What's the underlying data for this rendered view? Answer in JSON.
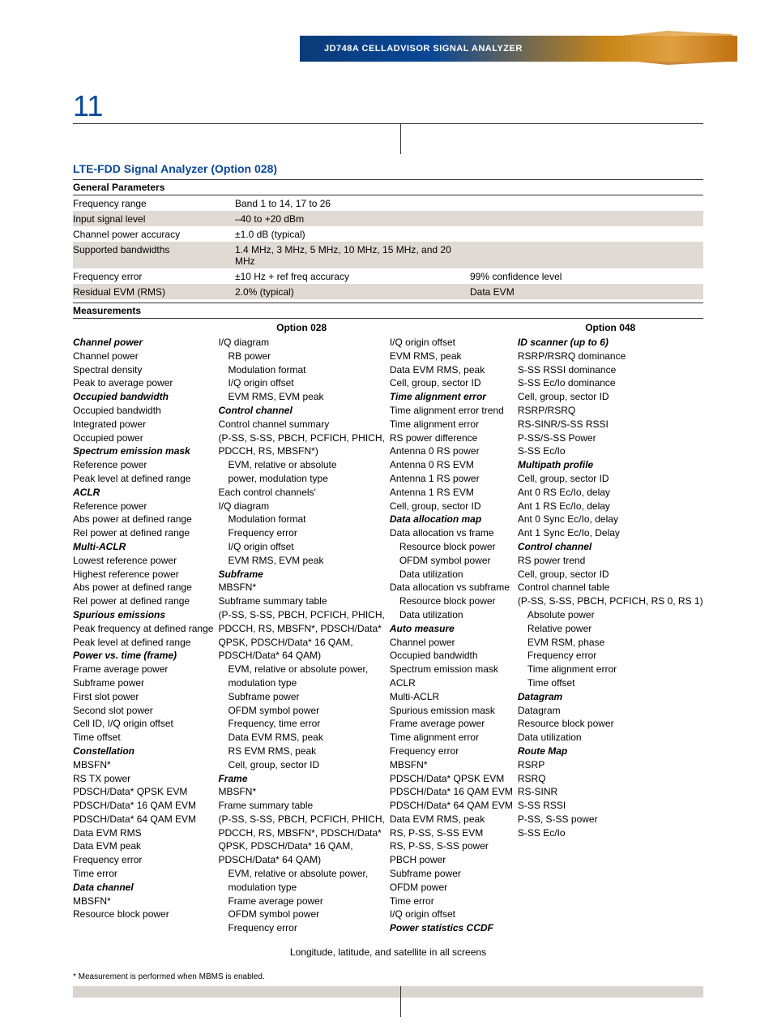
{
  "header": {
    "product_title": "JD748A CELLADVISOR SIGNAL ANALYZER",
    "page_number": "11"
  },
  "colors": {
    "heading_blue": "#0a4796",
    "shaded_row": "#e0dad4",
    "footer_grey": "#d9d4cd",
    "body_text": "#000000"
  },
  "section_title": "LTE-FDD Signal Analyzer (Option 028)",
  "general_parameters": {
    "heading": "General Parameters",
    "rows": [
      {
        "label": "Frequency range",
        "value": "Band 1 to 14, 17 to 26",
        "right": "",
        "shaded": false
      },
      {
        "label": "Input signal level",
        "value": "–40 to +20 dBm",
        "right": "",
        "shaded": true
      },
      {
        "label": "Channel power accuracy",
        "value": "±1.0 dB (typical)",
        "right": "",
        "shaded": false
      },
      {
        "label": "Supported bandwidths",
        "value": "1.4 MHz, 3 MHz, 5 MHz, 10 MHz, 15 MHz, and 20 MHz",
        "right": "",
        "shaded": true
      },
      {
        "label": "Frequency error",
        "value": "±10 Hz + ref freq accuracy",
        "right": "99% confidence level",
        "shaded": false
      },
      {
        "label": "Residual EVM (RMS)",
        "value": "2.0% (typical)",
        "right": "Data EVM",
        "shaded": true
      }
    ]
  },
  "measurements": {
    "heading": "Measurements",
    "option028_heading": "Option 028",
    "option048_heading": "Option 048",
    "col1": [
      {
        "t": "Channel power",
        "c": "bi"
      },
      {
        "t": "Channel power"
      },
      {
        "t": "Spectral density"
      },
      {
        "t": "Peak to average power"
      },
      {
        "t": "Occupied bandwidth",
        "c": "bi"
      },
      {
        "t": "Occupied bandwidth"
      },
      {
        "t": "Integrated power"
      },
      {
        "t": "Occupied power"
      },
      {
        "t": "Spectrum emission mask",
        "c": "bi"
      },
      {
        "t": "Reference power"
      },
      {
        "t": "Peak level at defined range"
      },
      {
        "t": "ACLR",
        "c": "bi"
      },
      {
        "t": "Reference power"
      },
      {
        "t": "Abs power at defined range"
      },
      {
        "t": "Rel power at defined range"
      },
      {
        "t": "Multi-ACLR",
        "c": "bi"
      },
      {
        "t": "Lowest reference power"
      },
      {
        "t": "Highest reference power"
      },
      {
        "t": "Abs power at defined range"
      },
      {
        "t": "Rel power at defined range"
      },
      {
        "t": "Spurious emissions",
        "c": "bi"
      },
      {
        "t": "Peak frequency at defined range"
      },
      {
        "t": "Peak level at defined range"
      },
      {
        "t": "Power vs. time (frame)",
        "c": "bi"
      },
      {
        "t": "Frame average power"
      },
      {
        "t": "Subframe power"
      },
      {
        "t": "First slot power"
      },
      {
        "t": "Second slot power"
      },
      {
        "t": "Cell ID, I/Q origin offset"
      },
      {
        "t": "Time offset"
      },
      {
        "t": "Constellation",
        "c": "bi"
      },
      {
        "t": "MBSFN*"
      },
      {
        "t": "RS TX power"
      },
      {
        "t": "PDSCH/Data* QPSK EVM"
      },
      {
        "t": "PDSCH/Data* 16 QAM EVM"
      },
      {
        "t": "PDSCH/Data* 64 QAM EVM"
      },
      {
        "t": "Data EVM RMS"
      },
      {
        "t": "Data EVM peak"
      },
      {
        "t": "Frequency error"
      },
      {
        "t": "Time error"
      },
      {
        "t": "Data channel",
        "c": "bi"
      },
      {
        "t": "MBSFN*"
      },
      {
        "t": "Resource block power"
      }
    ],
    "col2": [
      {
        "t": "I/Q diagram"
      },
      {
        "t": "RB power",
        "c": "indent"
      },
      {
        "t": "Modulation format",
        "c": "indent"
      },
      {
        "t": "I/Q origin offset",
        "c": "indent"
      },
      {
        "t": "EVM RMS, EVM peak",
        "c": "indent"
      },
      {
        "t": "Control channel",
        "c": "bi"
      },
      {
        "t": "Control channel summary"
      },
      {
        "t": "(P-SS, S-SS, PBCH, PCFICH, PHICH,"
      },
      {
        "t": "PDCCH, RS, MBSFN*)"
      },
      {
        "t": "EVM, relative or absolute",
        "c": "indent"
      },
      {
        "t": "power, modulation type",
        "c": "indent"
      },
      {
        "t": "Each control channels'"
      },
      {
        "t": "I/Q diagram"
      },
      {
        "t": "Modulation format",
        "c": "indent"
      },
      {
        "t": "Frequency error",
        "c": "indent"
      },
      {
        "t": "I/Q origin offset",
        "c": "indent"
      },
      {
        "t": "EVM RMS, EVM peak",
        "c": "indent"
      },
      {
        "t": "Subframe",
        "c": "bi"
      },
      {
        "t": "MBSFN*"
      },
      {
        "t": "Subframe summary table"
      },
      {
        "t": "(P-SS, S-SS, PBCH, PCFICH, PHICH,"
      },
      {
        "t": "PDCCH, RS, MBSFN*, PDSCH/Data*"
      },
      {
        "t": "QPSK,  PDSCH/Data* 16 QAM,"
      },
      {
        "t": "PDSCH/Data* 64 QAM)"
      },
      {
        "t": "EVM, relative or absolute power,",
        "c": "indent"
      },
      {
        "t": "modulation type",
        "c": "indent"
      },
      {
        "t": "Subframe power",
        "c": "indent"
      },
      {
        "t": "OFDM symbol power",
        "c": "indent"
      },
      {
        "t": "Frequency, time error",
        "c": "indent"
      },
      {
        "t": "Data EVM RMS, peak",
        "c": "indent"
      },
      {
        "t": "RS EVM RMS, peak",
        "c": "indent"
      },
      {
        "t": "Cell, group, sector ID",
        "c": "indent"
      },
      {
        "t": "Frame",
        "c": "bi"
      },
      {
        "t": "MBSFN*"
      },
      {
        "t": "Frame summary table"
      },
      {
        "t": "(P-SS, S-SS, PBCH, PCFICH, PHICH,"
      },
      {
        "t": "PDCCH, RS, MBSFN*, PDSCH/Data*"
      },
      {
        "t": "QPSK,  PDSCH/Data* 16 QAM,"
      },
      {
        "t": "PDSCH/Data*  64 QAM)"
      },
      {
        "t": "EVM, relative or absolute power,",
        "c": "indent"
      },
      {
        "t": "modulation type",
        "c": "indent"
      },
      {
        "t": "Frame average power",
        "c": "indent"
      },
      {
        "t": "OFDM symbol power",
        "c": "indent"
      },
      {
        "t": "Frequency error",
        "c": "indent"
      }
    ],
    "col3": [
      {
        "t": "I/Q origin offset"
      },
      {
        "t": "EVM RMS, peak"
      },
      {
        "t": "Data EVM RMS, peak"
      },
      {
        "t": "Cell, group, sector ID"
      },
      {
        "t": "Time alignment error",
        "c": "bi"
      },
      {
        "t": "Time alignment error trend"
      },
      {
        "t": "Time alignment error"
      },
      {
        "t": "RS power difference"
      },
      {
        "t": "Antenna 0 RS power"
      },
      {
        "t": "Antenna 0 RS EVM"
      },
      {
        "t": "Antenna 1 RS power"
      },
      {
        "t": "Antenna 1 RS EVM"
      },
      {
        "t": "Cell, group, sector ID"
      },
      {
        "t": "Data allocation map",
        "c": "bi"
      },
      {
        "t": "Data allocation vs frame"
      },
      {
        "t": "Resource block power",
        "c": "indent"
      },
      {
        "t": "OFDM symbol power",
        "c": "indent"
      },
      {
        "t": "Data utilization",
        "c": "indent"
      },
      {
        "t": "Data allocation vs subframe"
      },
      {
        "t": "Resource block power",
        "c": "indent"
      },
      {
        "t": "Data utilization",
        "c": "indent"
      },
      {
        "t": "Auto measure",
        "c": "bi"
      },
      {
        "t": "Channel power"
      },
      {
        "t": "Occupied bandwidth"
      },
      {
        "t": "Spectrum emission mask"
      },
      {
        "t": "ACLR"
      },
      {
        "t": "Multi-ACLR"
      },
      {
        "t": "Spurious emission mask"
      },
      {
        "t": "Frame average power"
      },
      {
        "t": "Time alignment error"
      },
      {
        "t": "Frequency error"
      },
      {
        "t": "MBSFN*"
      },
      {
        "t": "PDSCH/Data* QPSK EVM"
      },
      {
        "t": "PDSCH/Data* 16 QAM EVM"
      },
      {
        "t": "PDSCH/Data* 64 QAM EVM"
      },
      {
        "t": "Data EVM RMS, peak"
      },
      {
        "t": "RS, P-SS, S-SS EVM"
      },
      {
        "t": "RS, P-SS, S-SS power"
      },
      {
        "t": "PBCH power"
      },
      {
        "t": "Subframe power"
      },
      {
        "t": "OFDM power"
      },
      {
        "t": "Time error"
      },
      {
        "t": "I/Q origin offset"
      },
      {
        "t": "Power statistics CCDF",
        "c": "bi"
      }
    ],
    "col4": [
      {
        "t": "ID scanner (up to 6)",
        "c": "bi"
      },
      {
        "t": "RSRP/RSRQ dominance"
      },
      {
        "t": "S-SS RSSI dominance"
      },
      {
        "t": "S-SS Ec/Io dominance"
      },
      {
        "t": "Cell, group, sector ID"
      },
      {
        "t": "RSRP/RSRQ"
      },
      {
        "t": "RS-SINR/S-SS RSSI"
      },
      {
        "t": "P-SS/S-SS Power"
      },
      {
        "t": "S-SS Ec/Io"
      },
      {
        "t": "Multipath profile",
        "c": "bi"
      },
      {
        "t": "Cell, group, sector ID"
      },
      {
        "t": "Ant 0 RS Ec/Io, delay"
      },
      {
        "t": "Ant 1 RS Ec/Io, delay"
      },
      {
        "t": "Ant 0 Sync Ec/Io, delay"
      },
      {
        "t": "Ant 1 Sync Ec/Io, Delay"
      },
      {
        "t": "Control channel",
        "c": "bi"
      },
      {
        "t": "RS power trend"
      },
      {
        "t": "Cell, group, sector ID"
      },
      {
        "t": "Control channel table"
      },
      {
        "t": "(P-SS, S-SS, PBCH, PCFICH, RS 0, RS 1)"
      },
      {
        "t": "Absolute power",
        "c": "indent"
      },
      {
        "t": "Relative power",
        "c": "indent"
      },
      {
        "t": "EVM RSM, phase",
        "c": "indent"
      },
      {
        "t": "Frequency error",
        "c": "indent"
      },
      {
        "t": "Time alignment error",
        "c": "indent"
      },
      {
        "t": "Time offset",
        "c": "indent"
      },
      {
        "t": "Datagram",
        "c": "bi"
      },
      {
        "t": "Datagram"
      },
      {
        "t": "Resource block power"
      },
      {
        "t": "Data utilization"
      },
      {
        "t": "Route Map",
        "c": "bi"
      },
      {
        "t": "RSRP"
      },
      {
        "t": "RSRQ"
      },
      {
        "t": "RS-SINR"
      },
      {
        "t": "S-SS RSSI"
      },
      {
        "t": "P-SS, S-SS power"
      },
      {
        "t": "S-SS Ec/Io"
      }
    ]
  },
  "center_note": "Longitude, latitude, and satellite in all screens",
  "footnote": "* Measurement is performed when MBMS is enabled."
}
